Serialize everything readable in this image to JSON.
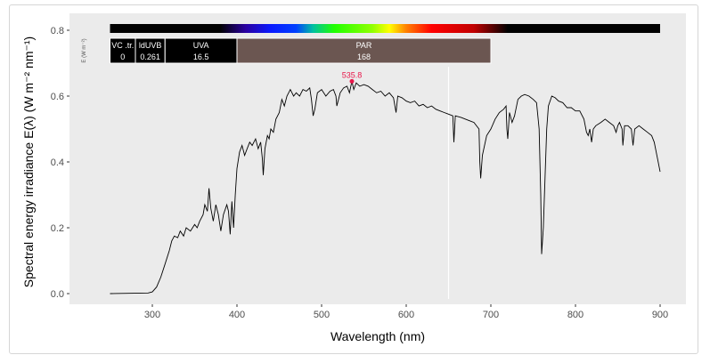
{
  "chart_data": {
    "type": "line",
    "xlabel": "Wavelength (nm)",
    "ylabel": "Spectral energy irradiance E(λ) (W m⁻² nm⁻¹)",
    "xlim": [
      250,
      900
    ],
    "ylim": [
      0,
      0.8
    ],
    "x_ticks": [
      300,
      400,
      500,
      600,
      700,
      800,
      900
    ],
    "y_ticks": [
      "0.0",
      "0.2",
      "0.4",
      "0.6",
      "0.8"
    ],
    "grid": false,
    "line_color": "#000000",
    "panel_color": "#ebebeb",
    "peak": {
      "x": 535.8,
      "y": 0.645,
      "label": "535.8",
      "color": "#e8174a"
    },
    "vertical_line_x": 650,
    "band_axis_label": "E (W m⁻²)",
    "bands": [
      {
        "name": "VC .tr.",
        "value": "0",
        "range": [
          250,
          280
        ],
        "color": "#000000"
      },
      {
        "name": "ldUVB",
        "value": "0.261",
        "range": [
          280,
          315
        ],
        "color": "#000000"
      },
      {
        "name": "UVA",
        "value": "16.5",
        "range": [
          315,
          400
        ],
        "color": "#000000"
      },
      {
        "name": "PAR",
        "value": "168",
        "range": [
          400,
          700
        ],
        "color": "#6b5651"
      }
    ],
    "spectrum_colors": [
      {
        "nm": 250,
        "color": "#000000"
      },
      {
        "nm": 380,
        "color": "#000000"
      },
      {
        "nm": 410,
        "color": "#2a00a0"
      },
      {
        "nm": 440,
        "color": "#0a1aff"
      },
      {
        "nm": 470,
        "color": "#0040ff"
      },
      {
        "nm": 490,
        "color": "#00c0a0"
      },
      {
        "nm": 515,
        "color": "#20ff00"
      },
      {
        "nm": 560,
        "color": "#90ff00"
      },
      {
        "nm": 580,
        "color": "#ffff00"
      },
      {
        "nm": 600,
        "color": "#ff8000"
      },
      {
        "nm": 630,
        "color": "#ff0000"
      },
      {
        "nm": 680,
        "color": "#c00000"
      },
      {
        "nm": 720,
        "color": "#000000"
      },
      {
        "nm": 900,
        "color": "#000000"
      }
    ],
    "x": [
      250,
      295,
      300,
      305,
      310,
      315,
      320,
      323,
      326,
      330,
      333,
      337,
      340,
      345,
      350,
      353,
      356,
      360,
      362,
      365,
      367,
      369,
      372,
      375,
      378,
      381,
      384,
      388,
      390,
      392,
      394,
      396,
      398,
      400,
      403,
      406,
      409,
      412,
      415,
      418,
      422,
      425,
      428,
      430,
      431,
      433,
      436,
      438,
      440,
      443,
      446,
      450,
      453,
      456,
      459,
      463,
      467,
      470,
      474,
      478,
      482,
      486,
      488,
      490,
      492,
      495,
      500,
      505,
      510,
      514,
      517,
      518,
      522,
      526,
      530,
      533,
      535.8,
      538,
      541,
      545,
      550,
      555,
      560,
      565,
      570,
      575,
      580,
      585,
      588,
      590,
      595,
      600,
      605,
      610,
      615,
      620,
      625,
      630,
      635,
      640,
      645,
      650,
      655,
      656.3,
      658,
      665,
      670,
      675,
      680,
      686,
      687,
      688,
      690,
      695,
      700,
      705,
      710,
      715,
      718,
      719,
      720,
      722,
      725,
      728,
      732,
      736,
      740,
      745,
      750,
      754,
      757,
      759,
      760,
      762,
      764,
      766,
      768,
      772,
      776,
      780,
      785,
      790,
      795,
      800,
      805,
      810,
      813,
      815,
      817,
      819,
      821,
      824,
      830,
      835,
      840,
      845,
      848,
      850,
      852,
      855,
      856,
      858,
      862,
      866,
      868,
      870,
      875,
      880,
      885,
      890,
      893,
      897,
      900
    ],
    "y": [
      0,
      0.002,
      0.005,
      0.02,
      0.05,
      0.09,
      0.13,
      0.16,
      0.175,
      0.17,
      0.19,
      0.175,
      0.2,
      0.19,
      0.21,
      0.2,
      0.22,
      0.24,
      0.27,
      0.25,
      0.32,
      0.26,
      0.22,
      0.27,
      0.24,
      0.19,
      0.24,
      0.27,
      0.25,
      0.18,
      0.28,
      0.2,
      0.3,
      0.38,
      0.43,
      0.45,
      0.42,
      0.44,
      0.46,
      0.45,
      0.47,
      0.44,
      0.46,
      0.41,
      0.36,
      0.44,
      0.48,
      0.47,
      0.5,
      0.49,
      0.53,
      0.55,
      0.59,
      0.57,
      0.6,
      0.62,
      0.6,
      0.61,
      0.6,
      0.62,
      0.615,
      0.625,
      0.59,
      0.54,
      0.56,
      0.61,
      0.62,
      0.6,
      0.615,
      0.62,
      0.6,
      0.57,
      0.61,
      0.625,
      0.63,
      0.61,
      0.645,
      0.62,
      0.64,
      0.63,
      0.635,
      0.63,
      0.62,
      0.61,
      0.615,
      0.6,
      0.61,
      0.595,
      0.55,
      0.6,
      0.595,
      0.585,
      0.58,
      0.585,
      0.57,
      0.575,
      0.565,
      0.57,
      0.56,
      0.555,
      0.55,
      0.545,
      0.54,
      0.46,
      0.54,
      0.535,
      0.53,
      0.525,
      0.52,
      0.5,
      0.4,
      0.35,
      0.42,
      0.48,
      0.5,
      0.53,
      0.55,
      0.56,
      0.57,
      0.5,
      0.47,
      0.55,
      0.52,
      0.54,
      0.59,
      0.6,
      0.605,
      0.6,
      0.59,
      0.58,
      0.5,
      0.3,
      0.12,
      0.2,
      0.35,
      0.5,
      0.57,
      0.6,
      0.595,
      0.585,
      0.58,
      0.565,
      0.565,
      0.555,
      0.555,
      0.53,
      0.49,
      0.48,
      0.5,
      0.46,
      0.5,
      0.51,
      0.52,
      0.53,
      0.52,
      0.51,
      0.49,
      0.51,
      0.52,
      0.5,
      0.45,
      0.51,
      0.51,
      0.5,
      0.45,
      0.5,
      0.51,
      0.5,
      0.49,
      0.48,
      0.46,
      0.41,
      0.37
    ]
  }
}
